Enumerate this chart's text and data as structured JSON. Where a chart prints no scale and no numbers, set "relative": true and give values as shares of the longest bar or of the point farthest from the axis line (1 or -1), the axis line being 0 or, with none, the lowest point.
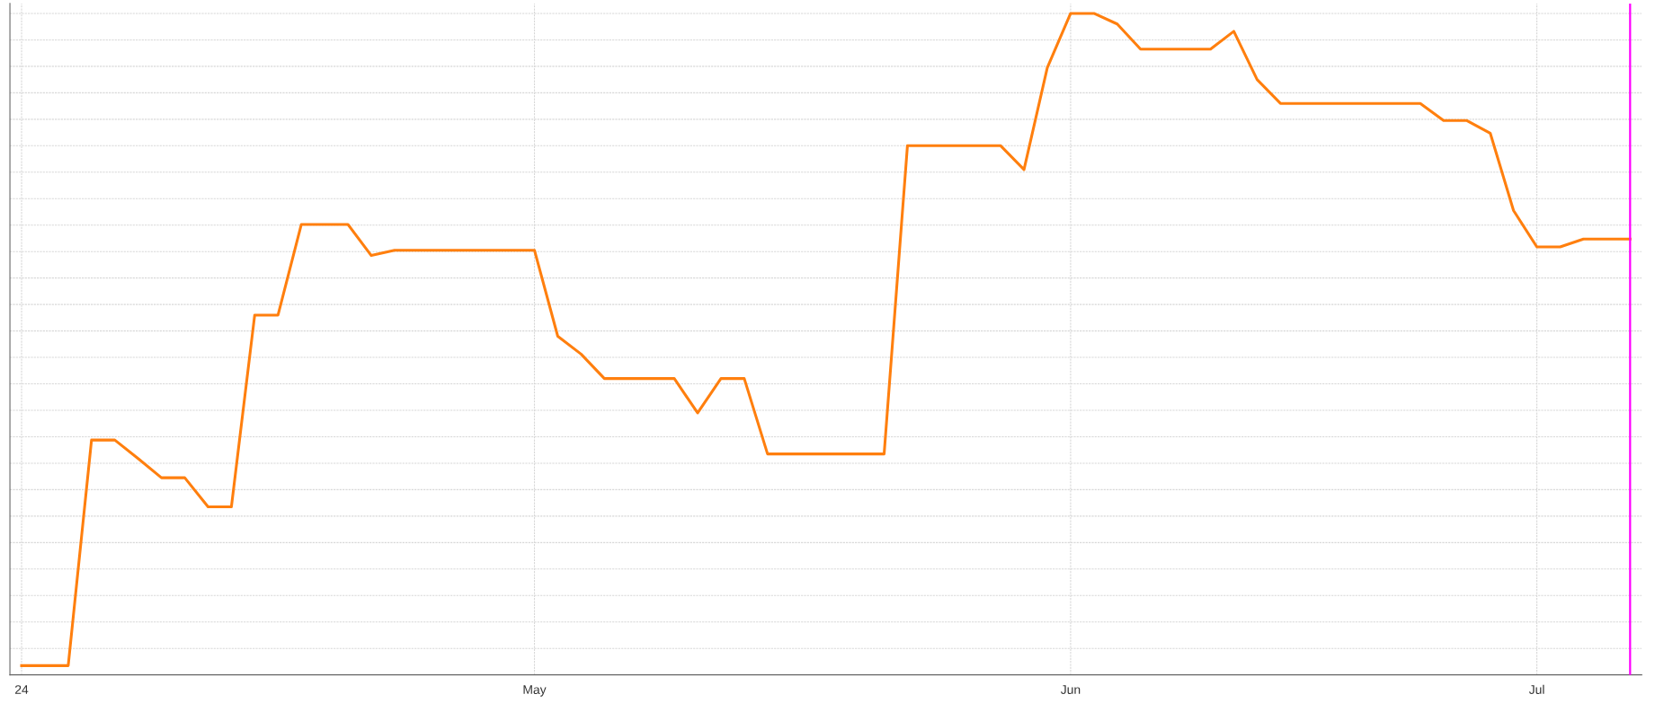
{
  "chart_data": {
    "type": "line",
    "relative": true,
    "categories": [
      "24",
      null,
      null,
      null,
      null,
      null,
      null,
      null,
      null,
      null,
      null,
      null,
      null,
      null,
      null,
      null,
      null,
      null,
      null,
      null,
      null,
      null,
      "May",
      null,
      null,
      null,
      null,
      null,
      null,
      null,
      null,
      null,
      null,
      null,
      null,
      null,
      null,
      null,
      null,
      null,
      null,
      null,
      null,
      null,
      null,
      "Jun",
      null,
      null,
      null,
      null,
      null,
      null,
      null,
      null,
      null,
      null,
      null,
      null,
      null,
      null,
      null,
      null,
      null,
      null,
      null,
      "Jul",
      null,
      null,
      null,
      null
    ],
    "series": [
      {
        "color": "#ff7f0e",
        "values": [
          0.014,
          0.014,
          0.014,
          0.355,
          0.355,
          0.327,
          0.298,
          0.298,
          0.254,
          0.254,
          0.544,
          0.544,
          0.681,
          0.681,
          0.681,
          0.634,
          0.642,
          0.642,
          0.642,
          0.642,
          0.642,
          0.642,
          0.642,
          0.512,
          0.485,
          0.448,
          0.448,
          0.448,
          0.448,
          0.396,
          0.448,
          0.448,
          0.334,
          0.334,
          0.334,
          0.334,
          0.334,
          0.334,
          0.8,
          0.8,
          0.8,
          0.8,
          0.8,
          0.764,
          0.918,
          1,
          1,
          0.984,
          0.946,
          0.946,
          0.946,
          0.946,
          0.973,
          0.9,
          0.864,
          0.864,
          0.864,
          0.864,
          0.864,
          0.864,
          0.864,
          0.838,
          0.838,
          0.819,
          0.702,
          0.647,
          0.647,
          0.659,
          0.659,
          0.659
        ]
      }
    ],
    "grid": true,
    "legend": false,
    "marker": "none",
    "line_style": "solid"
  }
}
